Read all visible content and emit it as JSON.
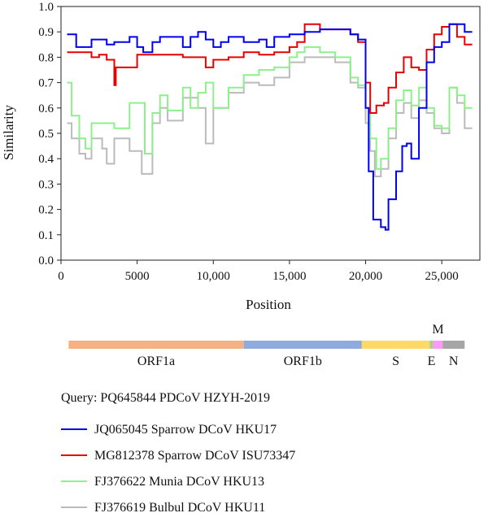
{
  "chart_data": {
    "type": "line",
    "xlabel": "Position",
    "ylabel": "Similarity",
    "xlim": [
      0,
      27500
    ],
    "ylim": [
      0.0,
      1.0
    ],
    "x_ticks": [
      0,
      5000,
      10000,
      15000,
      20000,
      25000
    ],
    "x_tick_labels": [
      "0",
      "5000",
      "10,000",
      "15,000",
      "20,000",
      "25,000"
    ],
    "y_ticks": [
      0.0,
      0.1,
      0.2,
      0.3,
      0.4,
      0.5,
      0.6,
      0.7,
      0.8,
      0.9,
      1.0
    ],
    "y_tick_labels": [
      "0.0",
      "0.1",
      "0.2",
      "0.3",
      "0.4",
      "0.5",
      "0.6",
      "0.7",
      "0.8",
      "0.9",
      "1.0"
    ],
    "grid": false,
    "legend_position": "below",
    "query_label": "Query: PQ645844 PDCoV HZYH-2019",
    "series": [
      {
        "name": "JQ065045 Sparrow DCoV HKU17",
        "color": "#0000ee",
        "x": [
          400,
          1000,
          2000,
          3000,
          3500,
          4500,
          5000,
          5400,
          6000,
          6500,
          7000,
          8000,
          8500,
          9000,
          9500,
          10000,
          10500,
          11000,
          12000,
          13000,
          13500,
          14000,
          15000,
          15500,
          16000,
          17000,
          18000,
          19000,
          19500,
          20000,
          20200,
          20500,
          21000,
          21300,
          21500,
          22000,
          22400,
          22700,
          23000,
          23500,
          24000,
          24500,
          25000,
          25500,
          26000,
          26500,
          27000
        ],
        "y": [
          0.89,
          0.84,
          0.87,
          0.85,
          0.86,
          0.88,
          0.84,
          0.82,
          0.86,
          0.88,
          0.88,
          0.84,
          0.88,
          0.9,
          0.87,
          0.84,
          0.86,
          0.88,
          0.86,
          0.87,
          0.84,
          0.88,
          0.89,
          0.89,
          0.9,
          0.91,
          0.91,
          0.89,
          0.87,
          0.6,
          0.35,
          0.16,
          0.13,
          0.12,
          0.24,
          0.35,
          0.45,
          0.46,
          0.4,
          0.6,
          0.78,
          0.84,
          0.86,
          0.93,
          0.93,
          0.9,
          0.9
        ]
      },
      {
        "name": "MG812378 Sparrow DCoV ISU73347",
        "color": "#e60000",
        "x": [
          400,
          1000,
          2000,
          2500,
          3000,
          3500,
          3600,
          4500,
          5000,
          6000,
          7000,
          8000,
          9000,
          9500,
          10000,
          11000,
          12000,
          13000,
          14000,
          15000,
          15500,
          16000,
          17000,
          18000,
          19000,
          19500,
          20000,
          20300,
          20700,
          21200,
          21500,
          22000,
          22500,
          23000,
          23500,
          24000,
          24500,
          25000,
          25500,
          26000,
          26500,
          27000
        ],
        "y": [
          0.82,
          0.82,
          0.8,
          0.81,
          0.79,
          0.69,
          0.76,
          0.76,
          0.81,
          0.81,
          0.81,
          0.8,
          0.8,
          0.76,
          0.79,
          0.8,
          0.82,
          0.81,
          0.82,
          0.84,
          0.86,
          0.93,
          0.91,
          0.91,
          0.89,
          0.86,
          0.7,
          0.58,
          0.61,
          0.62,
          0.68,
          0.74,
          0.8,
          0.76,
          0.75,
          0.83,
          0.89,
          0.92,
          0.93,
          0.88,
          0.85,
          0.85
        ]
      },
      {
        "name": "FJ376622 Munia DCoV HKU13",
        "color": "#8cf08c",
        "x": [
          400,
          700,
          1200,
          1600,
          2000,
          3000,
          3500,
          4500,
          5000,
          5500,
          6000,
          6500,
          7000,
          8000,
          8500,
          9000,
          9500,
          10000,
          11000,
          12000,
          13000,
          14000,
          15000,
          15500,
          16000,
          17000,
          18000,
          19000,
          19500,
          20000,
          20300,
          20700,
          21000,
          21500,
          22000,
          22500,
          23000,
          23500,
          24000,
          24500,
          25000,
          25500,
          26000,
          26500,
          27000
        ],
        "y": [
          0.7,
          0.57,
          0.48,
          0.44,
          0.54,
          0.54,
          0.52,
          0.62,
          0.62,
          0.42,
          0.58,
          0.65,
          0.59,
          0.68,
          0.6,
          0.66,
          0.7,
          0.6,
          0.68,
          0.73,
          0.75,
          0.76,
          0.8,
          0.82,
          0.84,
          0.82,
          0.8,
          0.72,
          0.69,
          0.6,
          0.48,
          0.36,
          0.4,
          0.52,
          0.63,
          0.67,
          0.61,
          0.68,
          0.6,
          0.53,
          0.52,
          0.68,
          0.65,
          0.6,
          0.6
        ]
      },
      {
        "name": "FJ376619 Bulbul DCoV HKU11",
        "color": "#bbbbbb",
        "x": [
          400,
          700,
          1200,
          1600,
          2000,
          2700,
          3000,
          3500,
          4500,
          5000,
          5300,
          5600,
          6000,
          6500,
          7000,
          8000,
          9000,
          9500,
          10000,
          11000,
          12000,
          13000,
          14000,
          15000,
          16000,
          17000,
          18000,
          19000,
          19500,
          20000,
          20300,
          20600,
          21000,
          21500,
          22000,
          22500,
          23000,
          23500,
          24000,
          24500,
          25000,
          25500,
          26000,
          26500,
          27000
        ],
        "y": [
          0.54,
          0.48,
          0.42,
          0.4,
          0.48,
          0.44,
          0.38,
          0.48,
          0.43,
          0.43,
          0.34,
          0.34,
          0.54,
          0.6,
          0.55,
          0.64,
          0.6,
          0.46,
          0.6,
          0.66,
          0.7,
          0.69,
          0.72,
          0.78,
          0.8,
          0.8,
          0.78,
          0.7,
          0.68,
          0.54,
          0.43,
          0.33,
          0.36,
          0.48,
          0.58,
          0.62,
          0.56,
          0.63,
          0.58,
          0.52,
          0.5,
          0.68,
          0.62,
          0.52,
          0.52
        ]
      }
    ],
    "genome_segments": [
      {
        "label": "ORF1a",
        "start": 500,
        "end": 12000,
        "color": "#f4b183"
      },
      {
        "label": "ORF1b",
        "start": 12000,
        "end": 19750,
        "color": "#8faadc"
      },
      {
        "label": "S",
        "start": 19750,
        "end": 24200,
        "color": "#ffd966"
      },
      {
        "label": "E",
        "start": 24200,
        "end": 24450,
        "color": "#a9d18e"
      },
      {
        "label": "M",
        "start": 24450,
        "end": 25050,
        "color": "#ff99ff"
      },
      {
        "label": "N",
        "start": 25050,
        "end": 26500,
        "color": "#a6a6a6"
      }
    ]
  }
}
